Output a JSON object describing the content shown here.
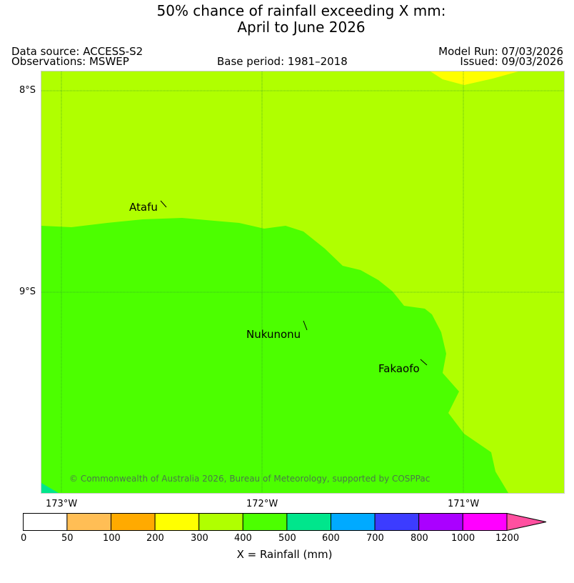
{
  "header": {
    "title_line1": "50% chance of rainfall exceeding X mm:",
    "title_line2": "April to June 2026",
    "data_source": "Data source: ACCESS-S2",
    "observations": "Observations: MSWEP",
    "base_period": "Base period: 1981–2018",
    "model_run": "Model Run: 07/03/2026",
    "issued": "Issued: 09/03/2026"
  },
  "map": {
    "lat_labels": [
      "8°S",
      "9°S"
    ],
    "lon_labels": [
      "173°W",
      "172°W",
      "171°W"
    ],
    "places": [
      "Atafu",
      "Nukunonu",
      "Fakaofo"
    ],
    "copyright": "© Commonwealth of Australia 2026, Bureau of Meteorology, supported by COSPPac",
    "region_colors": {
      "300-400": "#b0ff00",
      "400-500": "#4cff00",
      "500-600": "#00e68c",
      "200-300": "#ffff00"
    }
  },
  "colorbar": {
    "ticks": [
      "0",
      "50",
      "100",
      "200",
      "300",
      "400",
      "500",
      "600",
      "700",
      "800",
      "1000",
      "1200"
    ],
    "colors": [
      "#ffffff",
      "#ffbe55",
      "#ffaa00",
      "#ffff00",
      "#b0ff00",
      "#4cff00",
      "#00e68c",
      "#00aaff",
      "#3c3cff",
      "#aa00ff",
      "#ff00ff"
    ],
    "extend_color": "#ff50a0",
    "title": "X = Rainfall (mm)"
  }
}
